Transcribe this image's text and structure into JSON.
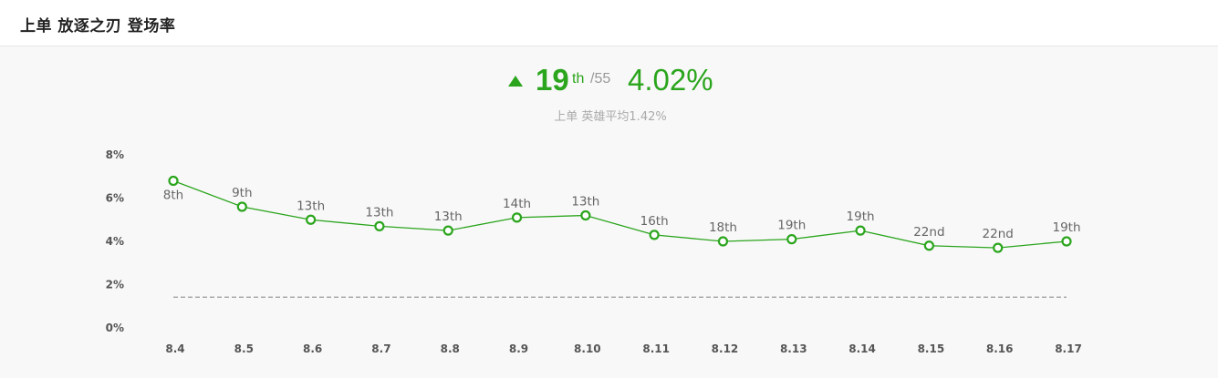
{
  "header": {
    "title": "上单 放逐之刃 登场率"
  },
  "summary": {
    "rank": "19",
    "rank_suffix": "th",
    "rank_total": "/55",
    "rate": "4.02%",
    "subtitle": "上单 英雄平均1.42%",
    "trend": "up"
  },
  "colors": {
    "accent": "#2ba51d",
    "average_line": "#999999"
  },
  "chart_data": {
    "type": "line",
    "title": "",
    "xlabel": "",
    "ylabel": "",
    "categories": [
      "8.4",
      "8.5",
      "8.6",
      "8.7",
      "8.8",
      "8.9",
      "8.10",
      "8.11",
      "8.12",
      "8.13",
      "8.14",
      "8.15",
      "8.16",
      "8.17"
    ],
    "series": [
      {
        "values": [
          6.8,
          5.6,
          5.0,
          4.7,
          4.5,
          5.1,
          5.2,
          4.3,
          4.0,
          4.1,
          4.5,
          3.8,
          3.7,
          4.0
        ],
        "labels": [
          "8th",
          "9th",
          "13th",
          "13th",
          "13th",
          "14th",
          "13th",
          "16th",
          "18th",
          "19th",
          "19th",
          "22nd",
          "22nd",
          "19th"
        ]
      }
    ],
    "average": 1.42,
    "yticks": [
      "0%",
      "2%",
      "4%",
      "6%",
      "8%"
    ],
    "ylim": [
      0,
      8
    ],
    "grid": false,
    "legend": "none"
  }
}
